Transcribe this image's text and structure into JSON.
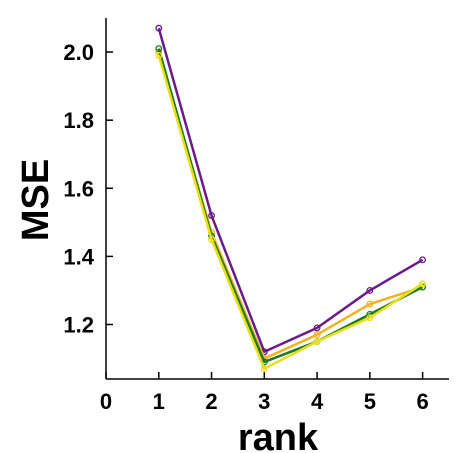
{
  "chart_data": {
    "type": "line",
    "title": "",
    "xlabel": "rank",
    "ylabel": "MSE",
    "xlim": [
      0,
      6.5
    ],
    "ylim": [
      1.04,
      2.1
    ],
    "xticks": [
      0,
      1,
      2,
      3,
      4,
      5,
      6
    ],
    "yticks": [
      1.2,
      1.4,
      1.6,
      1.8,
      2.0
    ],
    "xtick_labels": [
      "0",
      "1",
      "2",
      "3",
      "4",
      "5",
      "6"
    ],
    "ytick_labels": [
      "1.2",
      "1.4",
      "1.6",
      "1.8",
      "2.0"
    ],
    "grid": false,
    "legend": "none",
    "x": [
      1,
      2,
      3,
      4,
      5,
      6
    ],
    "series": [
      {
        "color": "#6a1a8a",
        "values": [
          2.07,
          1.52,
          1.12,
          1.19,
          1.3,
          1.39
        ]
      },
      {
        "color": "#f4b223",
        "values": [
          2.0,
          1.47,
          1.1,
          1.17,
          1.26,
          1.31
        ]
      },
      {
        "color": "#1f7a1f",
        "values": [
          2.01,
          1.46,
          1.09,
          1.15,
          1.23,
          1.31
        ]
      },
      {
        "color": "#e6df1a",
        "values": [
          1.99,
          1.45,
          1.07,
          1.15,
          1.22,
          1.32
        ]
      }
    ]
  }
}
